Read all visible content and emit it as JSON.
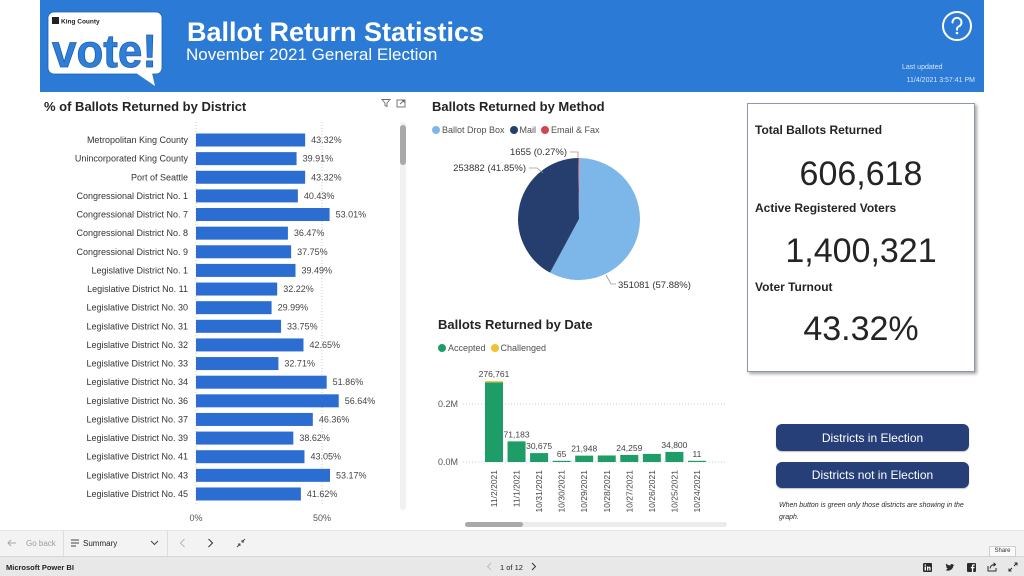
{
  "app": {
    "name": "Microsoft Power BI"
  },
  "header": {
    "logo_county": "King County",
    "logo_text": "vote!",
    "title": "Ballot Return Statistics",
    "subtitle": "November 2021 General Election",
    "last_updated_label": "Last updated",
    "last_updated_value": "11/4/2021 3:57:41 PM",
    "help_icon": "question-circle-icon"
  },
  "district_visual": {
    "icons": [
      "filter-icon",
      "focus-mode-icon"
    ]
  },
  "kpis": {
    "total_ballots_label": "Total Ballots Returned",
    "total_ballots_value": "606,618",
    "registered_voters_label": "Active Registered Voters",
    "registered_voters_value": "1,400,321",
    "turnout_label": "Voter Turnout",
    "turnout_value": "43.32%"
  },
  "buttons": {
    "in_election": "Districts in Election",
    "not_in_election": "Districts not in Election",
    "note": "When button is green only those districts are showing in the graph."
  },
  "nav": {
    "go_back": "Go back",
    "page_name": "Summary",
    "page_indicator": "1 of 12",
    "share_tooltip": "Share",
    "icons": [
      "back-arrow-icon",
      "page-list-icon",
      "chevron-down-icon",
      "previous-page-icon",
      "next-page-icon",
      "collapse-icon"
    ],
    "social_icons": [
      "linkedin-icon",
      "twitter-icon",
      "facebook-icon",
      "share-icon",
      "fullscreen-icon"
    ]
  },
  "colors": {
    "header_blue": "#2b7bd6",
    "district_bar": "#2b6dd0",
    "button_navy": "#263f78",
    "accepted_green": "#1f9d68",
    "challenged_yellow": "#f2c12e"
  },
  "chart_data": [
    {
      "type": "bar",
      "orientation": "horizontal",
      "title": "% of Ballots Returned by District",
      "categories": [
        "Metropolitan King County",
        "Unincorporated King County",
        "Port of Seattle",
        "Congressional District No. 1",
        "Congressional District No. 7",
        "Congressional District No. 8",
        "Congressional District No. 9",
        "Legislative District No. 1",
        "Legislative District No. 11",
        "Legislative District No. 30",
        "Legislative District No. 31",
        "Legislative District No. 32",
        "Legislative District No. 33",
        "Legislative District No. 34",
        "Legislative District No. 36",
        "Legislative District No. 37",
        "Legislative District No. 39",
        "Legislative District No. 41",
        "Legislative District No. 43",
        "Legislative District No. 45"
      ],
      "values": [
        43.32,
        39.91,
        43.32,
        40.43,
        53.01,
        36.47,
        37.75,
        39.49,
        32.22,
        29.99,
        33.75,
        42.65,
        32.71,
        51.86,
        56.64,
        46.36,
        38.62,
        43.05,
        53.17,
        41.62
      ],
      "value_labels": [
        "43.32%",
        "39.91%",
        "43.32%",
        "40.43%",
        "53.01%",
        "36.47%",
        "37.75%",
        "39.49%",
        "32.22%",
        "29.99%",
        "33.75%",
        "42.65%",
        "32.71%",
        "51.86%",
        "56.64%",
        "46.36%",
        "38.62%",
        "43.05%",
        "53.17%",
        "41.62%"
      ],
      "xticks": [
        {
          "value": 0,
          "label": "0%"
        },
        {
          "value": 50,
          "label": "50%"
        }
      ],
      "xlabel": "",
      "ylabel": "",
      "grid": true,
      "color": "#2b6dd0"
    },
    {
      "type": "pie",
      "title": "Ballots Returned by Method",
      "labels": [
        "Ballot Drop Box",
        "Mail",
        "Email & Fax"
      ],
      "values": [
        351081,
        253882,
        1655
      ],
      "percents": [
        57.88,
        41.85,
        0.27
      ],
      "data_labels": [
        "351081 (57.88%)",
        "253882 (41.85%)",
        "1655 (0.27%)"
      ],
      "colors": [
        "#7db6e8",
        "#263e6e",
        "#d6454f"
      ],
      "legend": "top-left"
    },
    {
      "type": "bar",
      "stacked": true,
      "title": "Ballots Returned by Date",
      "categories": [
        "11/2/2021",
        "11/1/2021",
        "10/31/2021",
        "10/30/2021",
        "10/29/2021",
        "10/28/2021",
        "10/27/2021",
        "10/26/2021",
        "10/25/2021",
        "10/24/2021"
      ],
      "totals": [
        276761,
        71183,
        30675,
        65,
        21948,
        22500,
        24259,
        28000,
        34800,
        11
      ],
      "value_labels": [
        "276,761",
        "71,183",
        "30,675",
        "65",
        "21,948",
        null,
        "24,259",
        null,
        "34,800",
        "11"
      ],
      "series": [
        {
          "name": "Accepted",
          "color": "#1f9d68",
          "values": [
            274761,
            71183,
            30675,
            65,
            21948,
            22500,
            24259,
            28000,
            34800,
            11
          ]
        },
        {
          "name": "Challenged",
          "color": "#f2c12e",
          "values": [
            2000,
            0,
            0,
            0,
            0,
            0,
            0,
            0,
            0,
            0
          ]
        }
      ],
      "yticks": [
        {
          "value": 0,
          "label": "0.0M"
        },
        {
          "value": 200000,
          "label": "0.2M"
        }
      ],
      "ylim": [
        0,
        300000
      ],
      "xlabel": "",
      "ylabel": "",
      "grid": true,
      "legend": "top-left"
    }
  ]
}
